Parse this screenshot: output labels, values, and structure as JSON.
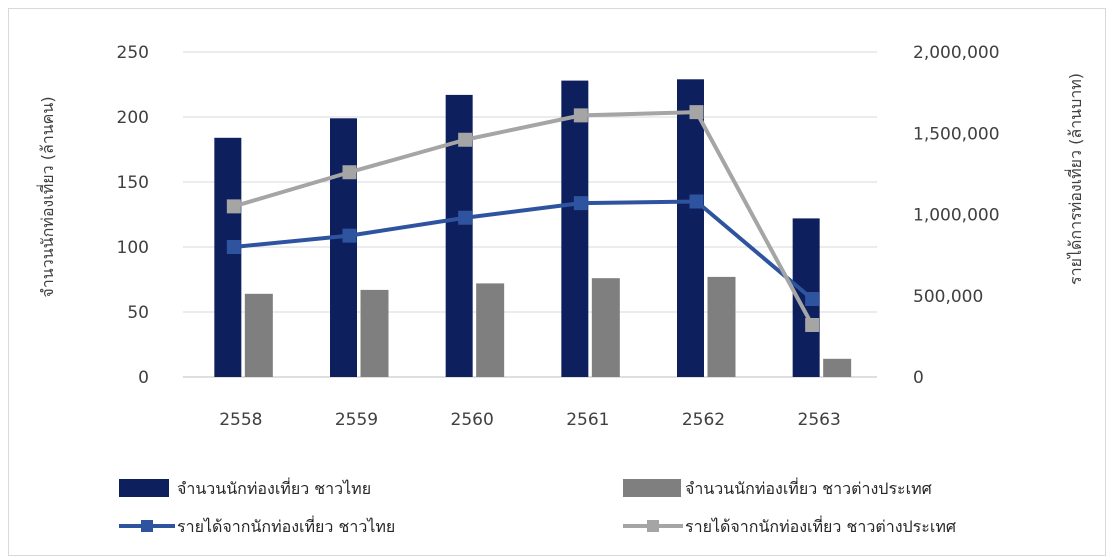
{
  "chart_data": {
    "type": "bar",
    "categories": [
      "2558",
      "2559",
      "2560",
      "2561",
      "2562",
      "2563"
    ],
    "ylabel_left": "จำนวนนักท่องเที่ยว (ล้านคน)",
    "ylabel_right": "รายได้การท่องเที่ยว (ล้านบาท)",
    "ylim_left": [
      0,
      250
    ],
    "ylim_right": [
      0,
      2000000
    ],
    "yticks_left": [
      "0",
      "50",
      "100",
      "150",
      "200",
      "250"
    ],
    "yticks_right": [
      "0",
      "500,000",
      "1,000,000",
      "1,500,000",
      "2,000,000"
    ],
    "grid": true,
    "legend_position": "bottom",
    "series": [
      {
        "name": "จำนวนนักท่องเที่ยว ชาวไทย",
        "kind": "bar",
        "axis": "left",
        "color": "#0d1f5c",
        "values": [
          184,
          199,
          217,
          228,
          229,
          122
        ]
      },
      {
        "name": "จำนวนนักท่องเที่ยว ชาวต่างประเทศ",
        "kind": "bar",
        "axis": "left",
        "color": "#7f7f7f",
        "values": [
          64,
          67,
          72,
          76,
          77,
          14
        ]
      },
      {
        "name": "รายได้จากนักท่องเที่ยว ชาวไทย",
        "kind": "line",
        "axis": "right",
        "color": "#2e54a0",
        "values": [
          800000,
          870000,
          980000,
          1070000,
          1080000,
          480000
        ]
      },
      {
        "name": "รายได้จากนักท่องเที่ยว ชาวต่างประเทศ",
        "kind": "line",
        "axis": "right",
        "color": "#a5a5a5",
        "values": [
          1050000,
          1260000,
          1460000,
          1610000,
          1630000,
          320000
        ]
      }
    ]
  }
}
